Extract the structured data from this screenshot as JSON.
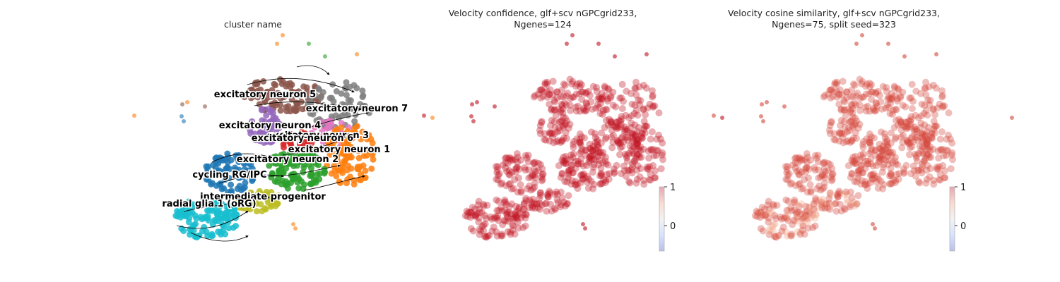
{
  "chart_data": [
    {
      "type": "scatter",
      "title": "cluster name",
      "clusters": [
        {
          "name": "excitatory neuron 5",
          "color": "#8c564b"
        },
        {
          "name": "excitatory neuron 7",
          "color": "#7f7f7f"
        },
        {
          "name": "excitatory neuron 4",
          "color": "#9467bd"
        },
        {
          "name": "excitatory neuron 3",
          "color": "#e377c2"
        },
        {
          "name": "excitatory neuron 6",
          "color": "#d62728"
        },
        {
          "name": "excitatory neuron 1",
          "color": "#ff7f0e"
        },
        {
          "name": "excitatory neuron 2",
          "color": "#2ca02c"
        },
        {
          "name": "cycling RG/IPC",
          "color": "#1f77b4"
        },
        {
          "name": "intermediate progenitor",
          "color": "#bcbd22"
        },
        {
          "name": "radial glia 1 (oRG)",
          "color": "#17becf"
        }
      ],
      "overlay": "velocity streamlines"
    },
    {
      "type": "scatter",
      "title_line1": "Velocity confidence, glf+scv nGPCgrid233,",
      "title_line2": "Ngenes=124",
      "colorbar": {
        "colormap": "coolwarm",
        "ticks": [
          "1",
          "0"
        ]
      },
      "dominant_color": "#c0111f"
    },
    {
      "type": "scatter",
      "title_line1": "Velocity cosine similarity, glf+scv nGPCgrid233,",
      "title_line2": "Ngenes=75, split seed=323",
      "colorbar": {
        "colormap": "coolwarm",
        "ticks": [
          "1",
          "0"
        ]
      },
      "dominant_color": "#d4463a"
    }
  ]
}
